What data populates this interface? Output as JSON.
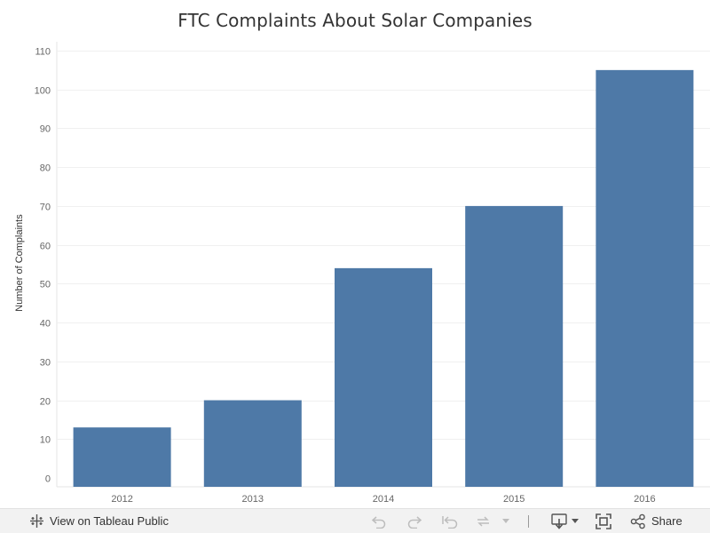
{
  "chart_data": {
    "type": "bar",
    "title": "FTC Complaints About Solar Companies",
    "xlabel": "",
    "ylabel": "Number of Complaints",
    "categories": [
      "2012",
      "2013",
      "2014",
      "2015",
      "2016"
    ],
    "values": [
      13,
      20,
      54,
      70,
      105
    ],
    "ylim": [
      0,
      110
    ],
    "yticks": [
      "0",
      "10",
      "20",
      "30",
      "40",
      "50",
      "60",
      "70",
      "80",
      "90",
      "100",
      "110"
    ],
    "grid": true,
    "bar_color": "#4e79a7"
  },
  "toolbar": {
    "view_on_label": "View on Tableau Public",
    "share_label": "Share",
    "background": "#f2f2f2",
    "icon_color": "#555555",
    "disabled_icon_color": "#bdbdbd"
  }
}
